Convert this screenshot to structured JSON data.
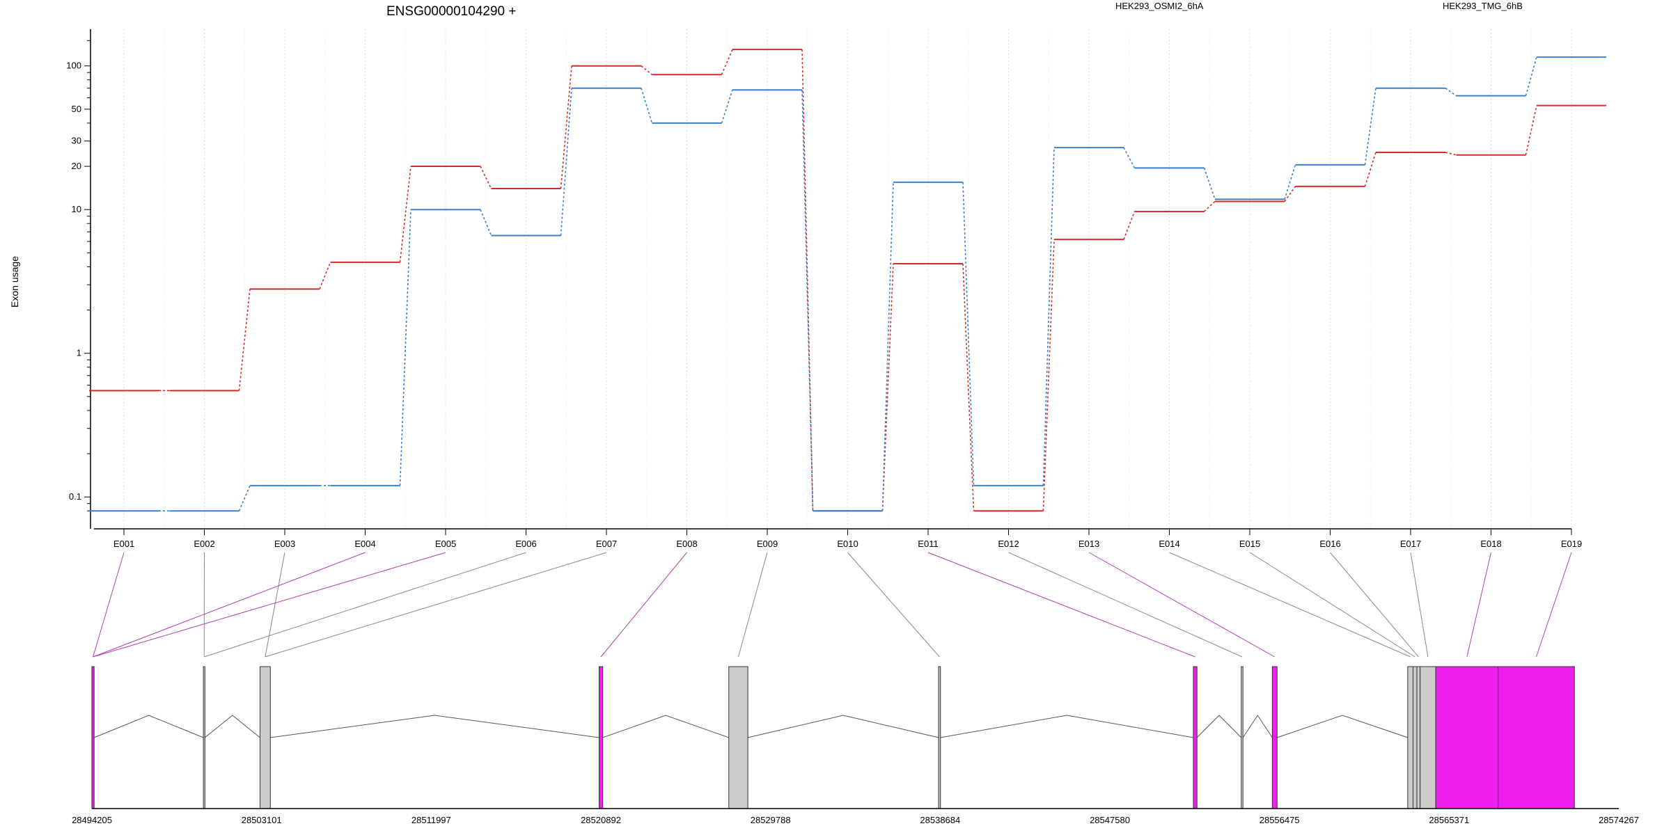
{
  "chart_data": {
    "type": "line",
    "title": "ENSG00000104290 +",
    "ylabel": "Exon usage",
    "xlabel": "",
    "y_scale": "log",
    "ylim": [
      0.075,
      180
    ],
    "y_ticks": [
      0.1,
      1,
      10,
      20,
      30,
      50,
      100
    ],
    "categories": [
      "E001",
      "E002",
      "E003",
      "E004",
      "E005",
      "E006",
      "E007",
      "E008",
      "E009",
      "E010",
      "E011",
      "E012",
      "E013",
      "E014",
      "E015",
      "E016",
      "E017",
      "E018",
      "E019"
    ],
    "series": [
      {
        "name": "HEK293_OSMI2_6hA",
        "color": "#d42a2a",
        "values": [
          0.55,
          0.55,
          2.8,
          4.3,
          20,
          14,
          100,
          87,
          130,
          0.08,
          4.2,
          0.08,
          6.2,
          9.7,
          11.4,
          14.5,
          25,
          24,
          53
        ]
      },
      {
        "name": "HEK293_TMG_6hB",
        "color": "#3a7fc8",
        "values": [
          0.08,
          0.08,
          0.12,
          0.12,
          10,
          6.6,
          70,
          40,
          68,
          0.08,
          15.5,
          0.12,
          27,
          19.5,
          11.8,
          20.5,
          70,
          62,
          115
        ]
      }
    ],
    "grid": "vertical-dotted",
    "legend": "top",
    "gene_model": {
      "coordinate_ticks": [
        "28494205",
        "28503101",
        "28511997",
        "28520892",
        "28529788",
        "28538684",
        "28547580",
        "28556475",
        "28565371",
        "28574267"
      ],
      "exons": [
        {
          "id": "E001",
          "start": 28494205,
          "end": 28494320,
          "highlight": true
        },
        {
          "id": "E002",
          "start": 28500050,
          "end": 28500130,
          "highlight": false
        },
        {
          "id": "E003",
          "start": 28503020,
          "end": 28503560,
          "highlight": false
        },
        {
          "id": "E004",
          "start": 28494205,
          "end": 28494320,
          "highlight": true
        },
        {
          "id": "E005",
          "start": 28494205,
          "end": 28494320,
          "highlight": true
        },
        {
          "id": "E006",
          "start": 28500050,
          "end": 28500130,
          "highlight": false
        },
        {
          "id": "E007",
          "start": 28503020,
          "end": 28503560,
          "highlight": false
        },
        {
          "id": "E008",
          "start": 28520800,
          "end": 28520990,
          "highlight": true
        },
        {
          "id": "E009",
          "start": 28527600,
          "end": 28528600,
          "highlight": false
        },
        {
          "id": "E010",
          "start": 28538600,
          "end": 28538700,
          "highlight": false
        },
        {
          "id": "E011",
          "start": 28551960,
          "end": 28552150,
          "highlight": true
        },
        {
          "id": "E012",
          "start": 28554470,
          "end": 28554560,
          "highlight": false
        },
        {
          "id": "E013",
          "start": 28556100,
          "end": 28556350,
          "highlight": true
        },
        {
          "id": "E014",
          "start": 28563200,
          "end": 28563480,
          "highlight": false
        },
        {
          "id": "E015",
          "start": 28563480,
          "end": 28563680,
          "highlight": false
        },
        {
          "id": "E016",
          "start": 28563680,
          "end": 28563850,
          "highlight": false
        },
        {
          "id": "E017",
          "start": 28563850,
          "end": 28564670,
          "highlight": false
        },
        {
          "id": "E018",
          "start": 28564670,
          "end": 28567940,
          "highlight": true
        },
        {
          "id": "E019",
          "start": 28567940,
          "end": 28571940,
          "highlight": true
        }
      ],
      "gene_start": 28494205,
      "gene_end": 28574267
    },
    "colors": {
      "highlight_exon": "#ee1fee",
      "plain_exon": "#cccccc",
      "connector_plain": "#888888",
      "connector_highlight": "#b040b0",
      "grid": "#dddddd"
    }
  }
}
